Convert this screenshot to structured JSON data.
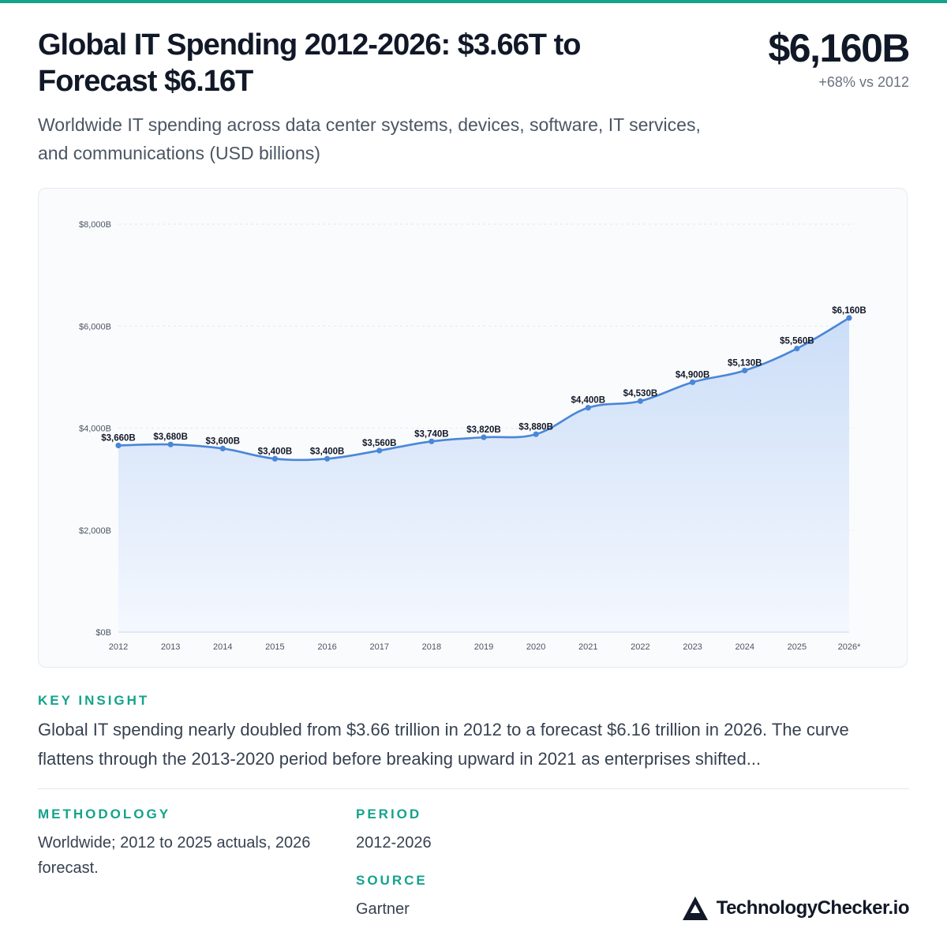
{
  "header": {
    "title": "Global IT Spending 2012-2026: $3.66T to Forecast $6.16T",
    "headline_value": "$6,160B",
    "headline_change": "+68% vs 2012",
    "subtitle": "Worldwide IT spending across data center systems, devices, software, IT services, and communications (USD billions)"
  },
  "chart_data": {
    "type": "area",
    "title": "",
    "xlabel": "",
    "ylabel": "",
    "categories": [
      "2012",
      "2013",
      "2014",
      "2015",
      "2016",
      "2017",
      "2018",
      "2019",
      "2020",
      "2021",
      "2022",
      "2023",
      "2024",
      "2025",
      "2026*"
    ],
    "series": [
      {
        "values": [
          3660,
          3680,
          3600,
          3400,
          3400,
          3560,
          3740,
          3820,
          3880,
          4400,
          4530,
          4900,
          5130,
          5560,
          6160
        ]
      }
    ],
    "data_labels": [
      "$3,660B",
      "$3,680B",
      "$3,600B",
      "$3,400B",
      "$3,400B",
      "$3,560B",
      "$3,740B",
      "$3,820B",
      "$3,880B",
      "$4,400B",
      "$4,530B",
      "$4,900B",
      "$5,130B",
      "$5,560B",
      "$6,160B"
    ],
    "y_ticks": [
      0,
      2000,
      4000,
      6000,
      8000
    ],
    "y_tick_labels": [
      "$0B",
      "$2,000B",
      "$4,000B",
      "$6,000B",
      "$8,000B"
    ],
    "ylim": [
      0,
      8000
    ],
    "grid": true,
    "colors": {
      "line": "#4a86d8",
      "fill_top": "#c9dcf7",
      "fill_bottom": "#f3f7fe"
    }
  },
  "insight": {
    "label": "KEY INSIGHT",
    "text": "Global IT spending nearly doubled from $3.66 trillion in 2012 to a forecast $6.16 trillion in 2026. The curve flattens through the 2013-2020 period before breaking upward in 2021 as enterprises shifted..."
  },
  "methodology": {
    "label": "METHODOLOGY",
    "text": "Worldwide; 2012 to 2025 actuals, 2026 forecast."
  },
  "period": {
    "label": "PERIOD",
    "text": "2012-2026"
  },
  "source": {
    "label": "SOURCE",
    "text": "Gartner"
  },
  "brand": {
    "name": "TechnologyChecker.io",
    "icon": "triangle-logo-icon"
  },
  "colors": {
    "accent": "#14a38b",
    "text": "#111827",
    "muted": "#6b7280"
  }
}
